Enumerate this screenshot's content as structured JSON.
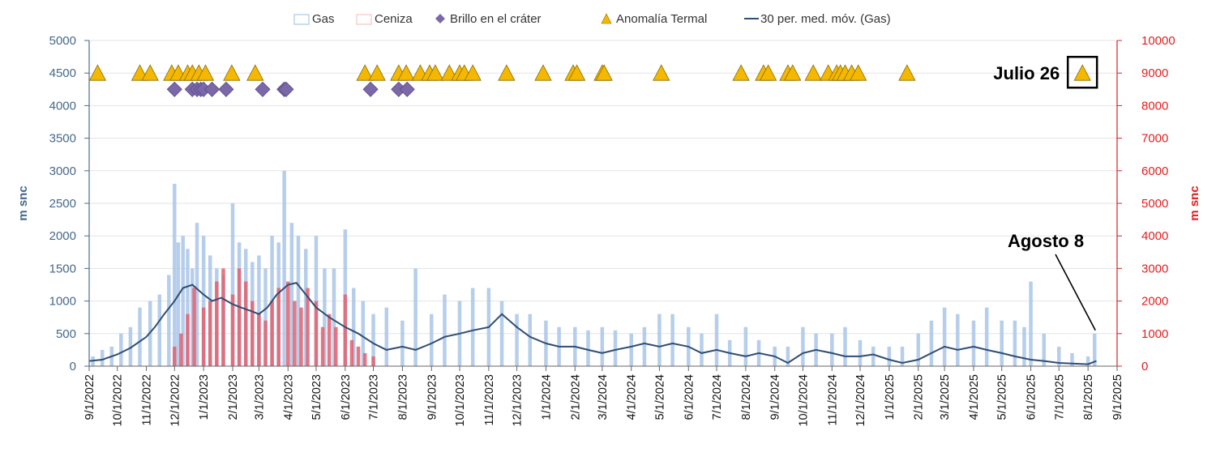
{
  "chart_data": {
    "type": "bar",
    "xlabel": "",
    "ylabel": "m snc",
    "y2label": "m snc",
    "ylim": [
      0,
      5000
    ],
    "y2lim": [
      0,
      10000
    ],
    "yticks": [
      0,
      500,
      1000,
      1500,
      2000,
      2500,
      3000,
      3500,
      4000,
      4500,
      5000
    ],
    "y2ticks": [
      0,
      1000,
      2000,
      3000,
      4000,
      5000,
      6000,
      7000,
      8000,
      9000,
      10000
    ],
    "xlim": [
      "2022-09-01",
      "2025-09-01"
    ],
    "xtick_labels": [
      "9/1/2022",
      "10/1/2022",
      "11/1/2022",
      "12/1/2022",
      "1/1/2023",
      "2/1/2023",
      "3/1/2023",
      "4/1/2023",
      "5/1/2023",
      "6/1/2023",
      "7/1/2023",
      "8/1/2023",
      "9/1/2023",
      "10/1/2023",
      "11/1/2023",
      "12/1/2023",
      "1/1/2024",
      "2/1/2024",
      "3/1/2024",
      "4/1/2024",
      "5/1/2024",
      "6/1/2024",
      "7/1/2024",
      "8/1/2024",
      "9/1/2024",
      "10/1/2024",
      "11/1/2024",
      "12/1/2024",
      "1/1/2025",
      "2/1/2025",
      "3/1/2025",
      "4/1/2025",
      "5/1/2025",
      "6/1/2025",
      "7/1/2025",
      "8/1/2025",
      "9/1/2025"
    ],
    "legend": {
      "placement": "top-center",
      "items": [
        {
          "label": "Gas",
          "kind": "bar",
          "color": "#aac7e8"
        },
        {
          "label": "Ceniza",
          "kind": "bar",
          "color": "#f2c4c8"
        },
        {
          "label": "Brillo en el cráter",
          "kind": "diamond",
          "color": "#7b68a8"
        },
        {
          "label": "Anomalía Termal",
          "kind": "triangle",
          "color": "#f5b800"
        },
        {
          "label": "30 per. med. móv. (Gas)",
          "kind": "line",
          "color": "#2e4d73"
        }
      ]
    },
    "series": [
      {
        "name": "Gas",
        "axis": "left",
        "kind": "bar",
        "color": "#a9c6e8",
        "x": [
          "2022-09-05",
          "2022-09-15",
          "2022-09-25",
          "2022-10-05",
          "2022-10-15",
          "2022-10-25",
          "2022-11-05",
          "2022-11-15",
          "2022-11-25",
          "2022-12-01",
          "2022-12-05",
          "2022-12-10",
          "2022-12-15",
          "2022-12-20",
          "2022-12-25",
          "2023-01-01",
          "2023-01-08",
          "2023-01-15",
          "2023-01-22",
          "2023-02-01",
          "2023-02-08",
          "2023-02-15",
          "2023-02-22",
          "2023-03-01",
          "2023-03-08",
          "2023-03-15",
          "2023-03-22",
          "2023-03-28",
          "2023-04-05",
          "2023-04-12",
          "2023-04-20",
          "2023-05-01",
          "2023-05-10",
          "2023-05-20",
          "2023-06-01",
          "2023-06-10",
          "2023-06-20",
          "2023-07-01",
          "2023-07-15",
          "2023-08-01",
          "2023-08-15",
          "2023-09-01",
          "2023-09-15",
          "2023-10-01",
          "2023-10-15",
          "2023-11-01",
          "2023-11-15",
          "2023-12-01",
          "2023-12-15",
          "2024-01-01",
          "2024-01-15",
          "2024-02-01",
          "2024-02-15",
          "2024-03-01",
          "2024-03-15",
          "2024-04-01",
          "2024-04-15",
          "2024-05-01",
          "2024-05-15",
          "2024-06-01",
          "2024-06-15",
          "2024-07-01",
          "2024-07-15",
          "2024-08-01",
          "2024-08-15",
          "2024-09-01",
          "2024-09-15",
          "2024-10-01",
          "2024-10-15",
          "2024-11-01",
          "2024-11-15",
          "2024-12-01",
          "2024-12-15",
          "2025-01-01",
          "2025-01-15",
          "2025-02-01",
          "2025-02-15",
          "2025-03-01",
          "2025-03-15",
          "2025-04-01",
          "2025-04-15",
          "2025-05-01",
          "2025-05-15",
          "2025-05-25",
          "2025-06-01",
          "2025-06-15",
          "2025-07-01",
          "2025-07-15",
          "2025-08-01",
          "2025-08-08"
        ],
        "values": [
          150,
          250,
          300,
          500,
          600,
          900,
          1000,
          1100,
          1400,
          2800,
          1900,
          2000,
          1800,
          1500,
          2200,
          2000,
          1700,
          1500,
          1400,
          2500,
          1900,
          1800,
          1600,
          1700,
          1500,
          2000,
          1900,
          3000,
          2200,
          2000,
          1800,
          2000,
          1500,
          1500,
          2100,
          1200,
          1000,
          800,
          900,
          700,
          1500,
          800,
          1100,
          1000,
          1200,
          1200,
          1000,
          800,
          800,
          700,
          600,
          600,
          550,
          600,
          550,
          500,
          600,
          800,
          800,
          600,
          500,
          800,
          400,
          600,
          400,
          300,
          300,
          600,
          500,
          500,
          600,
          400,
          300,
          300,
          300,
          500,
          700,
          900,
          800,
          700,
          900,
          700,
          700,
          600,
          1300,
          500,
          300,
          200,
          150,
          500
        ]
      },
      {
        "name": "Ceniza",
        "axis": "right",
        "kind": "bar",
        "color": "#e06070",
        "x": [
          "2022-12-01",
          "2022-12-08",
          "2022-12-15",
          "2022-12-22",
          "2023-01-01",
          "2023-01-08",
          "2023-01-15",
          "2023-01-22",
          "2023-02-01",
          "2023-02-08",
          "2023-02-15",
          "2023-02-22",
          "2023-03-01",
          "2023-03-08",
          "2023-03-15",
          "2023-03-22",
          "2023-04-01",
          "2023-04-08",
          "2023-04-15",
          "2023-04-22",
          "2023-05-01",
          "2023-05-08",
          "2023-05-15",
          "2023-05-22",
          "2023-06-01",
          "2023-06-08",
          "2023-06-15",
          "2023-06-22",
          "2023-07-01"
        ],
        "values": [
          600,
          1000,
          1600,
          2400,
          1800,
          2000,
          2600,
          3000,
          2200,
          3000,
          2600,
          2000,
          1600,
          1400,
          2000,
          2400,
          2600,
          2000,
          1800,
          2400,
          2000,
          1200,
          1600,
          1200,
          2200,
          800,
          600,
          400,
          300
        ]
      },
      {
        "name": "30 per. med. móv. (Gas)",
        "axis": "left",
        "kind": "line",
        "color": "#2e4d73",
        "x": [
          "2022-09-01",
          "2022-09-15",
          "2022-10-01",
          "2022-10-15",
          "2022-11-01",
          "2022-11-10",
          "2022-11-20",
          "2022-12-01",
          "2022-12-10",
          "2022-12-20",
          "2023-01-01",
          "2023-01-10",
          "2023-01-20",
          "2023-02-01",
          "2023-02-10",
          "2023-02-20",
          "2023-03-01",
          "2023-03-10",
          "2023-03-20",
          "2023-04-01",
          "2023-04-10",
          "2023-04-20",
          "2023-05-01",
          "2023-05-15",
          "2023-06-01",
          "2023-06-15",
          "2023-07-01",
          "2023-07-15",
          "2023-08-01",
          "2023-08-15",
          "2023-09-01",
          "2023-09-15",
          "2023-10-01",
          "2023-10-15",
          "2023-11-01",
          "2023-11-15",
          "2023-12-01",
          "2023-12-15",
          "2024-01-01",
          "2024-01-15",
          "2024-02-01",
          "2024-02-15",
          "2024-03-01",
          "2024-03-15",
          "2024-04-01",
          "2024-04-15",
          "2024-05-01",
          "2024-05-15",
          "2024-06-01",
          "2024-06-15",
          "2024-07-01",
          "2024-07-15",
          "2024-08-01",
          "2024-08-15",
          "2024-09-01",
          "2024-09-15",
          "2024-10-01",
          "2024-10-15",
          "2024-11-01",
          "2024-11-15",
          "2024-12-01",
          "2024-12-15",
          "2025-01-01",
          "2025-01-15",
          "2025-02-01",
          "2025-02-15",
          "2025-03-01",
          "2025-03-15",
          "2025-04-01",
          "2025-04-15",
          "2025-05-01",
          "2025-05-15",
          "2025-06-01",
          "2025-06-15",
          "2025-07-01",
          "2025-07-15",
          "2025-08-01",
          "2025-08-10"
        ],
        "values": [
          80,
          100,
          180,
          280,
          450,
          600,
          800,
          1000,
          1200,
          1250,
          1100,
          1000,
          1050,
          950,
          900,
          850,
          800,
          900,
          1100,
          1250,
          1280,
          1100,
          900,
          750,
          600,
          500,
          350,
          250,
          300,
          250,
          350,
          450,
          500,
          550,
          600,
          800,
          600,
          450,
          350,
          300,
          300,
          250,
          200,
          250,
          300,
          350,
          300,
          350,
          300,
          200,
          250,
          200,
          150,
          200,
          150,
          50,
          200,
          250,
          200,
          150,
          150,
          180,
          100,
          50,
          100,
          200,
          300,
          250,
          300,
          250,
          200,
          150,
          100,
          80,
          50,
          40,
          30,
          80
        ]
      },
      {
        "name": "Brillo en el cráter",
        "axis": "left",
        "kind": "diamond",
        "color": "#7b68a8",
        "x": [
          "2022-12-01",
          "2022-12-20",
          "2022-12-25",
          "2022-12-29",
          "2023-01-01",
          "2023-01-10",
          "2023-01-25",
          "2023-03-05",
          "2023-03-28",
          "2023-03-30",
          "2023-06-28",
          "2023-07-28",
          "2023-08-06"
        ],
        "values": [
          4250,
          4250,
          4250,
          4250,
          4250,
          4250,
          4250,
          4250,
          4250,
          4250,
          4250,
          4250,
          4250
        ]
      },
      {
        "name": "Anomalía Termal",
        "axis": "left",
        "kind": "triangle",
        "color": "#f5b800",
        "x": [
          "2022-09-10",
          "2022-10-25",
          "2022-11-05",
          "2022-11-28",
          "2022-12-05",
          "2022-12-15",
          "2022-12-20",
          "2022-12-27",
          "2023-01-03",
          "2023-01-31",
          "2023-02-25",
          "2023-06-22",
          "2023-07-05",
          "2023-07-28",
          "2023-08-05",
          "2023-08-20",
          "2023-08-30",
          "2023-09-05",
          "2023-09-20",
          "2023-10-01",
          "2023-10-06",
          "2023-10-15",
          "2023-11-20",
          "2023-12-29",
          "2024-01-30",
          "2024-02-03",
          "2024-03-01",
          "2024-03-03",
          "2024-05-03",
          "2024-07-27",
          "2024-08-20",
          "2024-08-25",
          "2024-09-15",
          "2024-09-20",
          "2024-10-12",
          "2024-10-28",
          "2024-11-06",
          "2024-11-10",
          "2024-11-15",
          "2024-11-22",
          "2024-11-29",
          "2025-01-20",
          "2025-07-26"
        ],
        "values": [
          4500,
          4500,
          4500,
          4500,
          4500,
          4500,
          4500,
          4500,
          4500,
          4500,
          4500,
          4500,
          4500,
          4500,
          4500,
          4500,
          4500,
          4500,
          4500,
          4500,
          4500,
          4500,
          4500,
          4500,
          4500,
          4500,
          4500,
          4500,
          4500,
          4500,
          4500,
          4500,
          4500,
          4500,
          4500,
          4500,
          4500,
          4500,
          4500,
          4500,
          4500,
          4500,
          4500
        ]
      }
    ],
    "annotations": [
      {
        "text": "Julio 26",
        "x": "2025-07-26",
        "y": 4500,
        "boxed_point": true
      },
      {
        "text": "Agosto 8",
        "x": "2025-08-08",
        "y": 500,
        "arrow": true
      }
    ]
  }
}
